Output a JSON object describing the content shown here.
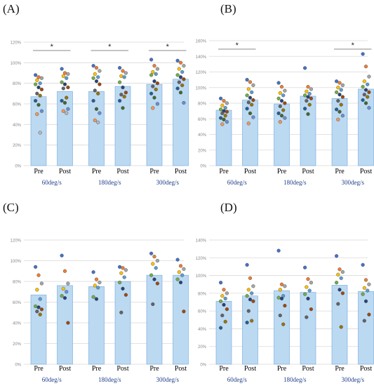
{
  "chart_data": [
    {
      "type": "bar",
      "panel": "(A)",
      "categories": [
        "Pre",
        "Post",
        "Pre",
        "Post",
        "Pre",
        "Post"
      ],
      "groups": [
        "60deg/s",
        "180deg/s",
        "300deg/s"
      ],
      "values": [
        67,
        72,
        72,
        77,
        79,
        84
      ],
      "errors": [
        0,
        0,
        0,
        0,
        0,
        0
      ],
      "ylim": [
        0,
        120
      ],
      "yticks": [
        "0%",
        "20%",
        "40%",
        "60%",
        "80%",
        "100%",
        "120%"
      ],
      "significance": [
        {
          "from": 0,
          "to": 1,
          "label": "*"
        },
        {
          "from": 2,
          "to": 3,
          "label": "*"
        },
        {
          "from": 4,
          "to": 5,
          "label": "*"
        }
      ],
      "points": [
        [
          88,
          86,
          85,
          83,
          80,
          79,
          76,
          74,
          70,
          68,
          63,
          59,
          53,
          50,
          32
        ],
        [
          94,
          90,
          89,
          87,
          85,
          81,
          79,
          76,
          75,
          66,
          63,
          61,
          55,
          53,
          51
        ],
        [
          97,
          95,
          92,
          89,
          86,
          85,
          82,
          79,
          73,
          70,
          63,
          55,
          51,
          44,
          42
        ],
        [
          95,
          92,
          90,
          87,
          86,
          81,
          76,
          71,
          69,
          67,
          63,
          56
        ],
        [
          103,
          97,
          94,
          91,
          89,
          88,
          82,
          80,
          77,
          74,
          70,
          66,
          60,
          56
        ],
        [
          102,
          100,
          97,
          94,
          91,
          88,
          86,
          84,
          81,
          78,
          75,
          71,
          61
        ]
      ]
    },
    {
      "type": "bar",
      "panel": "(B)",
      "categories": [
        "Pre",
        "Post",
        "Pre",
        "Post",
        "Pre",
        "Post"
      ],
      "groups": [
        "60deg/s",
        "180deg/s",
        "300deg/s"
      ],
      "values": [
        71,
        84,
        79,
        89,
        86,
        98
      ],
      "errors": [
        0,
        0,
        0,
        0,
        0,
        0
      ],
      "ylim": [
        0,
        160
      ],
      "yticks": [
        "0%",
        "20%",
        "40%",
        "60%",
        "80%",
        "100%",
        "120%",
        "140%",
        "160%"
      ],
      "significance": [
        {
          "from": 0,
          "to": 1,
          "label": "*"
        },
        {
          "from": 4,
          "to": 5,
          "label": "*"
        }
      ],
      "points": [
        [
          86,
          83,
          80,
          77,
          74,
          72,
          70,
          69,
          67,
          64,
          61,
          59,
          56,
          53
        ],
        [
          110,
          107,
          103,
          98,
          94,
          90,
          87,
          84,
          81,
          78,
          73,
          67,
          62,
          54
        ],
        [
          106,
          101,
          96,
          93,
          90,
          86,
          83,
          80,
          76,
          71,
          67,
          64,
          61,
          56
        ],
        [
          125,
          101,
          98,
          95,
          92,
          90,
          88,
          86,
          83,
          78,
          73,
          66
        ],
        [
          108,
          106,
          103,
          100,
          97,
          94,
          91,
          88,
          83,
          78,
          72,
          69,
          64,
          59
        ],
        [
          143,
          127,
          114,
          108,
          104,
          101,
          97,
          94,
          91,
          88,
          84,
          80,
          74
        ]
      ]
    },
    {
      "type": "bar",
      "panel": "(C)",
      "categories": [
        "Pre",
        "Post",
        "Pre",
        "Post",
        "Pre",
        "Post"
      ],
      "groups": [
        "60deg/s",
        "180deg/s",
        "300deg/s"
      ],
      "values": [
        67,
        76,
        75,
        80,
        86,
        86
      ],
      "errors": [
        0,
        0,
        0,
        0,
        0,
        0
      ],
      "ylim": [
        0,
        120
      ],
      "yticks": [
        "0%",
        "20%",
        "40%",
        "60%",
        "80%",
        "100%",
        "120%"
      ],
      "significance": [],
      "points": [
        [
          94,
          86,
          78,
          72,
          63,
          56,
          55,
          53,
          51,
          48
        ],
        [
          105,
          90,
          78,
          73,
          70,
          66,
          64,
          40
        ],
        [
          89,
          82,
          79,
          76,
          74,
          65,
          63
        ],
        [
          94,
          93,
          91,
          88,
          84,
          79,
          73,
          67,
          50
        ],
        [
          107,
          104,
          100,
          97,
          93,
          86,
          82,
          78,
          58
        ],
        [
          101,
          95,
          92,
          89,
          86,
          82,
          79,
          51
        ]
      ]
    },
    {
      "type": "bar",
      "panel": "(D)",
      "categories": [
        "Pre",
        "Post",
        "Pre",
        "Post",
        "Pre",
        "Post"
      ],
      "groups": [
        "60deg/s",
        "180deg/s",
        "300deg/s"
      ],
      "values": [
        71,
        77,
        83,
        81,
        89,
        82
      ],
      "errors": [
        0,
        0,
        0,
        0,
        0,
        0
      ],
      "ylim": [
        0,
        140
      ],
      "yticks": [
        "0%",
        "20%",
        "40%",
        "60%",
        "80%",
        "100%",
        "120%",
        "140%"
      ],
      "significance": [],
      "points": [
        [
          92,
          84,
          80,
          77,
          74,
          71,
          67,
          62,
          55,
          48,
          41
        ],
        [
          112,
          97,
          88,
          84,
          80,
          77,
          73,
          71,
          60,
          49,
          47
        ],
        [
          128,
          90,
          88,
          84,
          77,
          75,
          74,
          66,
          55,
          45
        ],
        [
          109,
          96,
          92,
          87,
          83,
          79,
          74,
          62,
          53
        ],
        [
          122,
          107,
          104,
          101,
          97,
          92,
          84,
          80,
          68,
          42
        ],
        [
          112,
          95,
          90,
          86,
          83,
          79,
          71,
          56,
          49
        ]
      ]
    }
  ],
  "colors": {
    "bar_fill": "#bcd9f2",
    "bar_stroke": "#6fa8dc",
    "gridline": "#d9d9d9",
    "axis_text": "#888888",
    "tick_text": "#000000",
    "group_text": "#1f3f8a",
    "error_bar": "#888888",
    "significance": "#888888",
    "point_palette": [
      "#4472c4",
      "#ed7d31",
      "#a5a5a5",
      "#ffc000",
      "#5b9bd5",
      "#70ad47",
      "#264478",
      "#9e480e",
      "#636363",
      "#997300",
      "#255e91",
      "#43682b",
      "#698ed0",
      "#f1975a",
      "#b7b7b7"
    ]
  }
}
